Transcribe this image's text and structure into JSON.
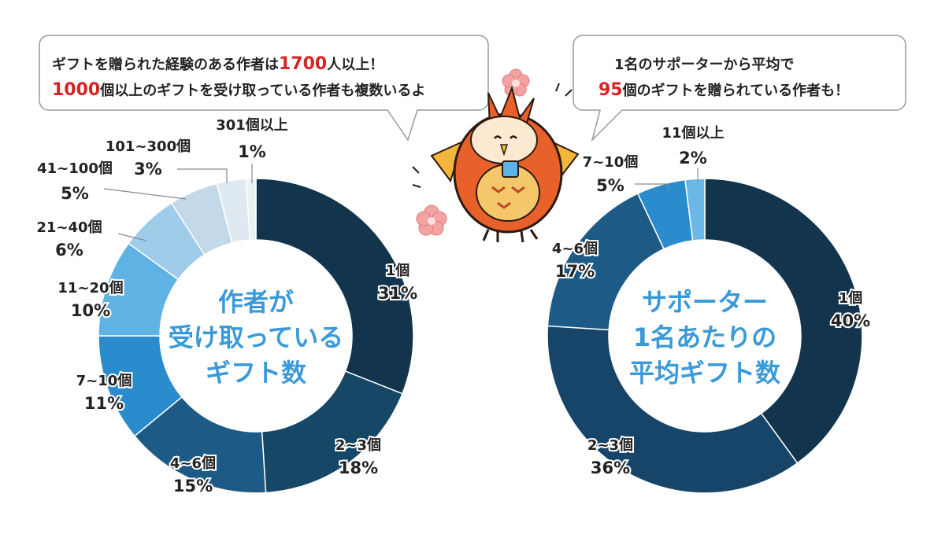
{
  "colors": {
    "accent_red": "#d62323",
    "center_text": "#3a9ad9",
    "label_text": "#222222",
    "bubble_border": "#9a9a9a"
  },
  "callouts": {
    "left": {
      "line1_prefix": "ギフトを贈られた経験のある作者は",
      "line1_highlight": "1700",
      "line1_suffix": "人以上！",
      "line2_highlight": "1000",
      "line2_suffix": "個以上のギフトを受け取っている作者も複数いるよ"
    },
    "right": {
      "line1": "1名のサポーターから平均で",
      "line2_highlight": "95",
      "line2_suffix": "個のギフトを贈られている作者も！"
    }
  },
  "mascot": {
    "icon": "orange-owl-mascot-icon",
    "decorations": "pink-flower-icon"
  },
  "chart_data": [
    {
      "type": "pie",
      "subtype": "donut",
      "center_title": [
        "作者が",
        "受け取っている",
        "ギフト数"
      ],
      "slices": [
        {
          "label": "1個",
          "value": 31,
          "display": "31%",
          "color": "#12354d"
        },
        {
          "label": "2~3個",
          "value": 18,
          "display": "18%",
          "color": "#174766"
        },
        {
          "label": "4~6個",
          "value": 15,
          "display": "15%",
          "color": "#1d5b86"
        },
        {
          "label": "7~10個",
          "value": 11,
          "display": "11%",
          "color": "#2a8ccc"
        },
        {
          "label": "11~20個",
          "value": 10,
          "display": "10%",
          "color": "#5fb3e4"
        },
        {
          "label": "21~40個",
          "value": 6,
          "display": "6%",
          "color": "#9fcce9"
        },
        {
          "label": "41~100個",
          "value": 5,
          "display": "5%",
          "color": "#c3d8e8"
        },
        {
          "label": "101~300個",
          "value": 3,
          "display": "3%",
          "color": "#dfe9f1"
        },
        {
          "label": "301個以上",
          "value": 1,
          "display": "1%",
          "color": "#e8f2f0"
        }
      ]
    },
    {
      "type": "pie",
      "subtype": "donut",
      "center_title": [
        "サポーター",
        "1名あたりの",
        "平均ギフト数"
      ],
      "slices": [
        {
          "label": "1個",
          "value": 40,
          "display": "40%",
          "color": "#12354d"
        },
        {
          "label": "2~3個",
          "value": 36,
          "display": "36%",
          "color": "#17456a"
        },
        {
          "label": "4~6個",
          "value": 17,
          "display": "17%",
          "color": "#1d5b86"
        },
        {
          "label": "7~10個",
          "value": 5,
          "display": "5%",
          "color": "#2a8ccc"
        },
        {
          "label": "11個以上",
          "value": 2,
          "display": "2%",
          "color": "#6bb8e6"
        }
      ]
    }
  ]
}
